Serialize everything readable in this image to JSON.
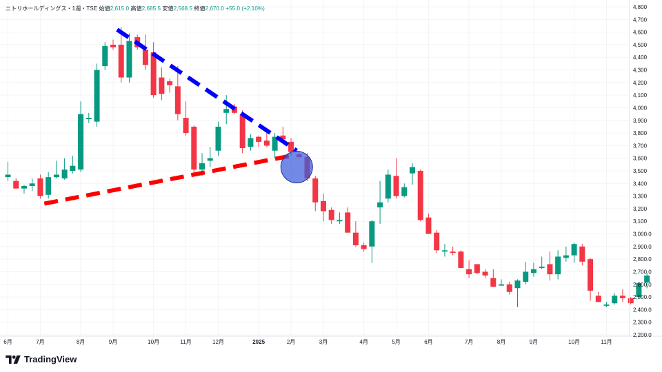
{
  "legend": {
    "name": "ニトリホールディングス・1週・TSE",
    "open_label": "始値",
    "open": "2,615.0",
    "high_label": "高値",
    "high": "2,685.5",
    "low_label": "安値",
    "low": "2,568.5",
    "close_label": "終値",
    "close": "2,670.0",
    "change": "+55.0 (+2.10%)"
  },
  "brand": {
    "name": "TradingView",
    "logo_icon": "tradingview-logo-icon"
  },
  "colors": {
    "up": "#089981",
    "down": "#f23645",
    "trend_upper": "#0000ff",
    "trend_lower": "#ff0000",
    "marker": "#3b5bdb"
  },
  "chart_data": {
    "type": "candlestick",
    "ylim": [
      2200,
      4800
    ],
    "y_ticks": [
      "2,200.0",
      "2,300.0",
      "2,400.0",
      "2,500.0",
      "2,600.0",
      "2,700.0",
      "2,800.0",
      "2,900.0",
      "3,000.0",
      "3,100",
      "3,200",
      "3,300",
      "3,400",
      "3,500",
      "3,600",
      "3,700",
      "3,800",
      "3,900",
      "4,000",
      "4,100",
      "4,200",
      "4,300",
      "4,400",
      "4,500",
      "4,600",
      "4,700",
      "4,800"
    ],
    "x_ticks": [
      {
        "label": "6月",
        "week": 0
      },
      {
        "label": "7月",
        "week": 4
      },
      {
        "label": "8月",
        "week": 9
      },
      {
        "label": "9月",
        "week": 13
      },
      {
        "label": "10月",
        "week": 18
      },
      {
        "label": "11月",
        "week": 22
      },
      {
        "label": "12月",
        "week": 26
      },
      {
        "label": "2025",
        "week": 31,
        "bold": true
      },
      {
        "label": "2月",
        "week": 35
      },
      {
        "label": "3月",
        "week": 39
      },
      {
        "label": "4月",
        "week": 44
      },
      {
        "label": "5月",
        "week": 48
      },
      {
        "label": "6月",
        "week": 52
      },
      {
        "label": "7月",
        "week": 57
      },
      {
        "label": "8月",
        "week": 61
      },
      {
        "label": "9月",
        "week": 65
      },
      {
        "label": "10月",
        "week": 70
      },
      {
        "label": "11月",
        "week": 74
      }
    ],
    "candles": [
      {
        "o": 3450,
        "h": 3570,
        "l": 3420,
        "c": 3470
      },
      {
        "o": 3420,
        "h": 3440,
        "l": 3360,
        "c": 3360
      },
      {
        "o": 3360,
        "h": 3390,
        "l": 3320,
        "c": 3380
      },
      {
        "o": 3380,
        "h": 3440,
        "l": 3340,
        "c": 3400
      },
      {
        "o": 3440,
        "h": 3470,
        "l": 3280,
        "c": 3300
      },
      {
        "o": 3310,
        "h": 3490,
        "l": 3280,
        "c": 3450
      },
      {
        "o": 3450,
        "h": 3580,
        "l": 3440,
        "c": 3470
      },
      {
        "o": 3440,
        "h": 3600,
        "l": 3430,
        "c": 3510
      },
      {
        "o": 3500,
        "h": 3620,
        "l": 3480,
        "c": 3540
      },
      {
        "o": 3510,
        "h": 4050,
        "l": 3490,
        "c": 3950
      },
      {
        "o": 3910,
        "h": 3960,
        "l": 3880,
        "c": 3920
      },
      {
        "o": 3890,
        "h": 4350,
        "l": 3850,
        "c": 4300
      },
      {
        "o": 4330,
        "h": 4520,
        "l": 4300,
        "c": 4490
      },
      {
        "o": 4500,
        "h": 4540,
        "l": 4460,
        "c": 4480
      },
      {
        "o": 4500,
        "h": 4640,
        "l": 4200,
        "c": 4240
      },
      {
        "o": 4240,
        "h": 4590,
        "l": 4200,
        "c": 4530
      },
      {
        "o": 4560,
        "h": 4580,
        "l": 4460,
        "c": 4480
      },
      {
        "o": 4460,
        "h": 4580,
        "l": 4300,
        "c": 4340
      },
      {
        "o": 4440,
        "h": 4520,
        "l": 4080,
        "c": 4100
      },
      {
        "o": 4240,
        "h": 4320,
        "l": 4060,
        "c": 4110
      },
      {
        "o": 4210,
        "h": 4230,
        "l": 4120,
        "c": 4180
      },
      {
        "o": 4170,
        "h": 4330,
        "l": 3900,
        "c": 3950
      },
      {
        "o": 3920,
        "h": 4050,
        "l": 3780,
        "c": 3800
      },
      {
        "o": 3850,
        "h": 3860,
        "l": 3480,
        "c": 3510
      },
      {
        "o": 3510,
        "h": 3640,
        "l": 3460,
        "c": 3560
      },
      {
        "o": 3580,
        "h": 3690,
        "l": 3530,
        "c": 3600
      },
      {
        "o": 3660,
        "h": 3890,
        "l": 3620,
        "c": 3850
      },
      {
        "o": 3960,
        "h": 4100,
        "l": 3870,
        "c": 3990
      },
      {
        "o": 4010,
        "h": 4030,
        "l": 3950,
        "c": 3960
      },
      {
        "o": 3950,
        "h": 3980,
        "l": 3640,
        "c": 3680
      },
      {
        "o": 3690,
        "h": 3790,
        "l": 3660,
        "c": 3760
      },
      {
        "o": 3770,
        "h": 3780,
        "l": 3690,
        "c": 3730
      },
      {
        "o": 3740,
        "h": 3800,
        "l": 3690,
        "c": 3700
      },
      {
        "o": 3660,
        "h": 3800,
        "l": 3600,
        "c": 3770
      },
      {
        "o": 3780,
        "h": 3850,
        "l": 3720,
        "c": 3750
      },
      {
        "o": 3730,
        "h": 3760,
        "l": 3620,
        "c": 3650
      },
      {
        "o": 3630,
        "h": 3640,
        "l": 3600,
        "c": 3610
      },
      {
        "o": 3610,
        "h": 3640,
        "l": 3420,
        "c": 3440
      },
      {
        "o": 3440,
        "h": 3460,
        "l": 3180,
        "c": 3250
      },
      {
        "o": 3260,
        "h": 3320,
        "l": 3100,
        "c": 3180
      },
      {
        "o": 3190,
        "h": 3210,
        "l": 3080,
        "c": 3110
      },
      {
        "o": 3100,
        "h": 3170,
        "l": 3080,
        "c": 3110
      },
      {
        "o": 3170,
        "h": 3210,
        "l": 3010,
        "c": 3010
      },
      {
        "o": 3010,
        "h": 3100,
        "l": 2900,
        "c": 2910
      },
      {
        "o": 2910,
        "h": 2930,
        "l": 2860,
        "c": 2880
      },
      {
        "o": 2900,
        "h": 3110,
        "l": 2770,
        "c": 3100
      },
      {
        "o": 3210,
        "h": 3420,
        "l": 3080,
        "c": 3250
      },
      {
        "o": 3280,
        "h": 3510,
        "l": 3250,
        "c": 3470
      },
      {
        "o": 3460,
        "h": 3600,
        "l": 3280,
        "c": 3300
      },
      {
        "o": 3300,
        "h": 3400,
        "l": 3290,
        "c": 3370
      },
      {
        "o": 3480,
        "h": 3560,
        "l": 3390,
        "c": 3530
      },
      {
        "o": 3500,
        "h": 3510,
        "l": 3100,
        "c": 3110
      },
      {
        "o": 3130,
        "h": 3160,
        "l": 3000,
        "c": 3000
      },
      {
        "o": 3010,
        "h": 3030,
        "l": 2850,
        "c": 2870
      },
      {
        "o": 2860,
        "h": 2920,
        "l": 2820,
        "c": 2870
      },
      {
        "o": 2860,
        "h": 2900,
        "l": 2830,
        "c": 2850
      },
      {
        "o": 2860,
        "h": 2870,
        "l": 2730,
        "c": 2730
      },
      {
        "o": 2720,
        "h": 2790,
        "l": 2650,
        "c": 2680
      },
      {
        "o": 2760,
        "h": 2760,
        "l": 2680,
        "c": 2690
      },
      {
        "o": 2700,
        "h": 2720,
        "l": 2650,
        "c": 2670
      },
      {
        "o": 2650,
        "h": 2720,
        "l": 2580,
        "c": 2580
      },
      {
        "o": 2590,
        "h": 2640,
        "l": 2590,
        "c": 2600
      },
      {
        "o": 2600,
        "h": 2620,
        "l": 2520,
        "c": 2540
      },
      {
        "o": 2570,
        "h": 2640,
        "l": 2420,
        "c": 2630
      },
      {
        "o": 2620,
        "h": 2780,
        "l": 2600,
        "c": 2700
      },
      {
        "o": 2690,
        "h": 2770,
        "l": 2660,
        "c": 2720
      },
      {
        "o": 2730,
        "h": 2820,
        "l": 2720,
        "c": 2740
      },
      {
        "o": 2760,
        "h": 2860,
        "l": 2630,
        "c": 2680
      },
      {
        "o": 2680,
        "h": 2870,
        "l": 2640,
        "c": 2820
      },
      {
        "o": 2810,
        "h": 2900,
        "l": 2780,
        "c": 2830
      },
      {
        "o": 2830,
        "h": 2930,
        "l": 2770,
        "c": 2920
      },
      {
        "o": 2900,
        "h": 2920,
        "l": 2750,
        "c": 2780
      },
      {
        "o": 2800,
        "h": 2810,
        "l": 2470,
        "c": 2550
      },
      {
        "o": 2510,
        "h": 2540,
        "l": 2460,
        "c": 2460
      },
      {
        "o": 2430,
        "h": 2460,
        "l": 2420,
        "c": 2440
      },
      {
        "o": 2450,
        "h": 2530,
        "l": 2440,
        "c": 2510
      },
      {
        "o": 2510,
        "h": 2560,
        "l": 2460,
        "c": 2490
      },
      {
        "o": 2490,
        "h": 2500,
        "l": 2440,
        "c": 2450
      },
      {
        "o": 2500,
        "h": 2620,
        "l": 2490,
        "c": 2610
      },
      {
        "o": 2615,
        "h": 2685.5,
        "l": 2568.5,
        "c": 2670
      }
    ],
    "drawings": [
      {
        "type": "trendline",
        "style": "dashed",
        "color": "#0000ff",
        "from": {
          "week": 13.5,
          "price": 4620
        },
        "to": {
          "week": 35.7,
          "price": 3660
        }
      },
      {
        "type": "trendline",
        "style": "dashed",
        "color": "#ff0000",
        "from": {
          "week": 4.5,
          "price": 3240
        },
        "to": {
          "week": 35.0,
          "price": 3620
        }
      },
      {
        "type": "circle",
        "color": "#3b5bdb",
        "center": {
          "week": 35.7,
          "price": 3530
        }
      }
    ]
  }
}
